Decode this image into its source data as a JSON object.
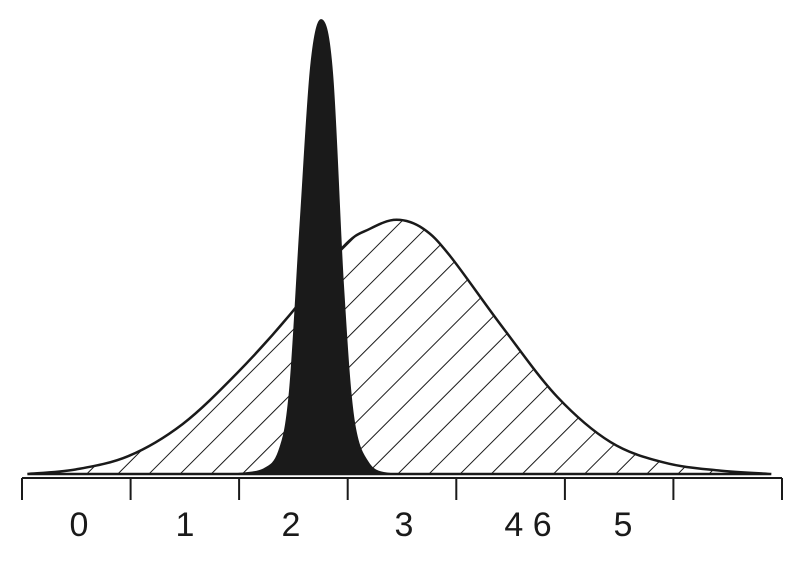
{
  "chart_data": {
    "type": "area",
    "title": "",
    "xlabel": "",
    "ylabel": "",
    "xlim": [
      -0.5,
      6.6
    ],
    "ylim": [
      0,
      1
    ],
    "grid": false,
    "legend": "none",
    "tick_labels": [
      "0",
      "1",
      "2",
      "3",
      "4 6",
      "5"
    ],
    "series": [
      {
        "fill": "hatched",
        "color": "#1a1a1a",
        "x": [
          -0.45,
          0.0,
          0.5,
          1.0,
          1.5,
          2.0,
          2.5,
          2.75,
          3.0,
          3.25,
          3.5,
          4.0,
          4.5,
          5.0,
          5.5,
          6.0,
          6.5
        ],
        "y": [
          0.0,
          0.01,
          0.04,
          0.11,
          0.22,
          0.35,
          0.5,
          0.54,
          0.56,
          0.54,
          0.48,
          0.32,
          0.17,
          0.07,
          0.025,
          0.008,
          0.0
        ]
      },
      {
        "fill": "solid",
        "color": "#1a1a1a",
        "x": [
          1.5,
          1.75,
          1.9,
          2.0,
          2.1,
          2.2,
          2.3,
          2.4,
          2.5,
          2.6,
          2.75,
          2.95
        ],
        "y": [
          0.0,
          0.01,
          0.05,
          0.18,
          0.55,
          0.9,
          1.0,
          0.88,
          0.42,
          0.12,
          0.02,
          0.0
        ]
      }
    ]
  }
}
